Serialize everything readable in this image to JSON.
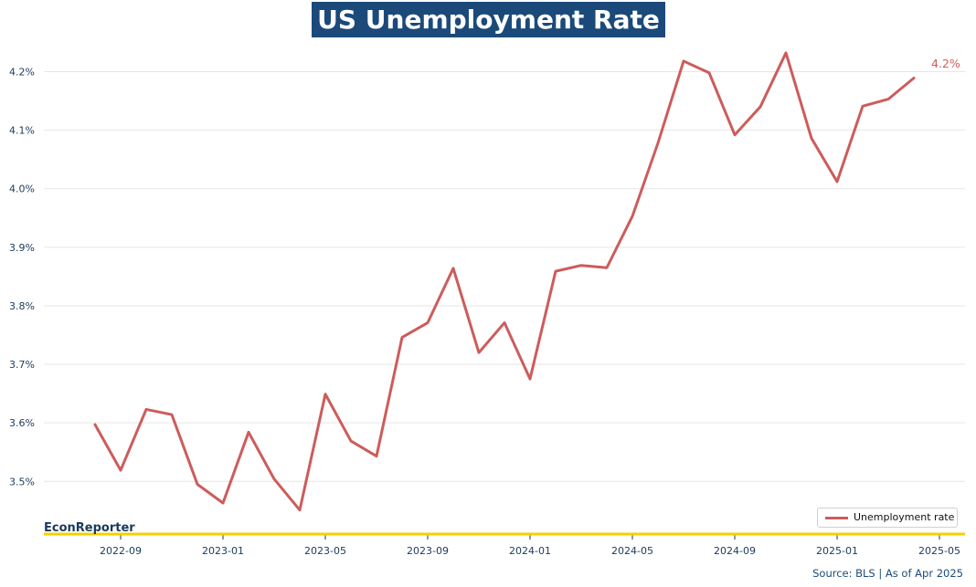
{
  "title": "US Unemployment Rate",
  "brand": "EconReporter",
  "source": "Source: BLS | As of Apr 2025",
  "end_label": "4.2%",
  "colors": {
    "title_bg": "#1b4a7a",
    "line": "#cd5c5c",
    "baseline": "#f5d000",
    "grid": "#e6e6e6",
    "tick_text": "#1b3a5c"
  },
  "chart_data": {
    "type": "line",
    "title": "US Unemployment Rate",
    "xlabel": "",
    "ylabel": "",
    "x": [
      "2022-08",
      "2022-09",
      "2022-10",
      "2022-11",
      "2022-12",
      "2023-01",
      "2023-02",
      "2023-03",
      "2023-04",
      "2023-05",
      "2023-06",
      "2023-07",
      "2023-08",
      "2023-09",
      "2023-10",
      "2023-11",
      "2023-12",
      "2024-01",
      "2024-02",
      "2024-03",
      "2024-04",
      "2024-05",
      "2024-06",
      "2024-07",
      "2024-08",
      "2024-09",
      "2024-10",
      "2024-11",
      "2024-12",
      "2025-01",
      "2025-02",
      "2025-03",
      "2025-04"
    ],
    "series": [
      {
        "name": "Unemployment rate",
        "values": [
          3.597,
          3.519,
          3.623,
          3.614,
          3.495,
          3.463,
          3.584,
          3.504,
          3.451,
          3.649,
          3.569,
          3.543,
          3.746,
          3.771,
          3.864,
          3.72,
          3.771,
          3.675,
          3.859,
          3.869,
          3.865,
          3.953,
          4.078,
          4.218,
          4.198,
          4.092,
          4.14,
          4.232,
          4.086,
          4.012,
          4.141,
          4.153,
          4.189
        ]
      }
    ],
    "yticks": [
      3.5,
      3.6,
      3.7,
      3.8,
      3.9,
      4.0,
      4.1,
      4.2
    ],
    "ytick_labels": [
      "3.5%",
      "3.6%",
      "3.7%",
      "3.8%",
      "3.9%",
      "4.0%",
      "4.1%",
      "4.2%"
    ],
    "xticks": [
      "2022-09",
      "2023-01",
      "2023-05",
      "2023-09",
      "2024-01",
      "2024-05",
      "2024-09",
      "2025-01",
      "2025-05"
    ],
    "ylim": [
      3.41,
      4.26
    ],
    "xlim": [
      "2022-06",
      "2025-06"
    ],
    "grid": true,
    "legend_position": "lower-right",
    "end_label": "4.2%"
  }
}
